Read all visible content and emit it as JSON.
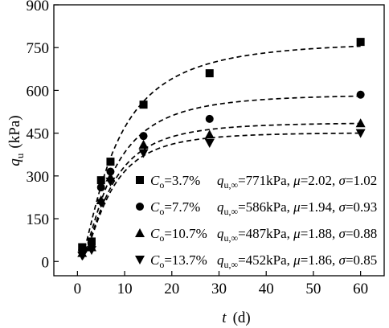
{
  "chart_data": {
    "type": "scatter",
    "title": "",
    "xlabel_var": "t",
    "xlabel_unit": "(d)",
    "ylabel_var": "q",
    "ylabel_sub": "u",
    "ylabel_unit": "(kPa)",
    "xlim": [
      -5,
      65
    ],
    "ylim": [
      -50,
      900
    ],
    "xticks": [
      0,
      10,
      20,
      30,
      40,
      50,
      60
    ],
    "yticks": [
      0,
      150,
      300,
      450,
      600,
      750,
      900
    ],
    "grid": false,
    "legend_position": "bottom-right",
    "series": [
      {
        "marker": "square",
        "legend": {
          "c_label": "C",
          "c_sub": "o",
          "c_value": "=3.7%",
          "q_label": "q",
          "q_sub": "u,∞",
          "q_value": "=771kPa, ",
          "mu_label": "μ",
          "mu_value": "=2.02, ",
          "sigma_label": "σ",
          "sigma_value": "=1.02"
        },
        "points": [
          [
            1,
            50
          ],
          [
            3,
            70
          ],
          [
            5,
            285
          ],
          [
            7,
            350
          ],
          [
            14,
            550
          ],
          [
            28,
            660
          ],
          [
            60,
            770
          ]
        ],
        "fit": {
          "q_inf": 771,
          "mu": 2.02,
          "sigma": 1.02
        }
      },
      {
        "marker": "circle",
        "legend": {
          "c_label": "C",
          "c_sub": "o",
          "c_value": "=7.7%",
          "q_label": "q",
          "q_sub": "u,∞",
          "q_value": "=586kPa, ",
          "mu_label": "μ",
          "mu_value": "=1.94, ",
          "sigma_label": "σ",
          "sigma_value": "=0.93"
        },
        "points": [
          [
            1,
            40
          ],
          [
            3,
            60
          ],
          [
            5,
            260
          ],
          [
            7,
            315
          ],
          [
            14,
            440
          ],
          [
            28,
            500
          ],
          [
            60,
            585
          ]
        ],
        "fit": {
          "q_inf": 586,
          "mu": 1.94,
          "sigma": 0.93
        }
      },
      {
        "marker": "triangle-up",
        "legend": {
          "c_label": "C",
          "c_sub": "o",
          "c_value": "=10.7%",
          "q_label": "q",
          "q_sub": "u,∞",
          "q_value": "=487kPa, ",
          "mu_label": "μ",
          "mu_value": "=1.88, ",
          "sigma_label": "σ",
          "sigma_value": "=0.88"
        },
        "points": [
          [
            1,
            30
          ],
          [
            3,
            50
          ],
          [
            5,
            215
          ],
          [
            7,
            295
          ],
          [
            14,
            410
          ],
          [
            28,
            445
          ],
          [
            60,
            485
          ]
        ],
        "fit": {
          "q_inf": 487,
          "mu": 1.88,
          "sigma": 0.88
        }
      },
      {
        "marker": "triangle-down",
        "legend": {
          "c_label": "C",
          "c_sub": "o",
          "c_value": "=13.7%",
          "q_label": "q",
          "q_sub": "u,∞",
          "q_value": "=452kPa, ",
          "mu_label": "μ",
          "mu_value": "=1.86, ",
          "sigma_label": "σ",
          "sigma_value": "=0.85"
        },
        "points": [
          [
            1,
            20
          ],
          [
            3,
            40
          ],
          [
            5,
            205
          ],
          [
            7,
            280
          ],
          [
            14,
            380
          ],
          [
            28,
            415
          ],
          [
            60,
            450
          ]
        ],
        "fit": {
          "q_inf": 452,
          "mu": 1.86,
          "sigma": 0.85
        }
      }
    ]
  }
}
